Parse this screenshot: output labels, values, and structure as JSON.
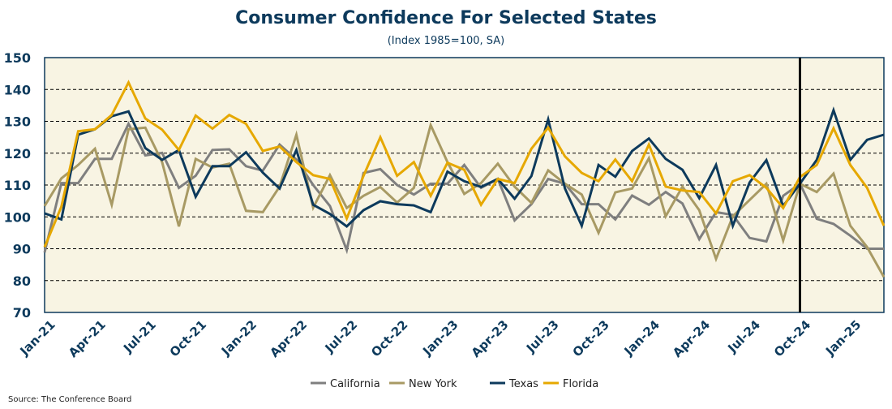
{
  "chart_data": {
    "type": "line",
    "title": "Consumer Confidence For Selected States",
    "subtitle": "(Index 1985=100, SA)",
    "xlabel": "",
    "ylabel": "",
    "ylim": [
      70,
      150
    ],
    "yticks": [
      70,
      80,
      90,
      100,
      110,
      120,
      130,
      140,
      150
    ],
    "grid": true,
    "legend_position": "bottom",
    "x_start": "Jan-21",
    "x_count": 51,
    "x_tick_labels": [
      "Jan-21",
      "Apr-21",
      "Jul-21",
      "Oct-21",
      "Jan-22",
      "Apr-22",
      "Jul-22",
      "Oct-22",
      "Jan-23",
      "Apr-23",
      "Jul-23",
      "Oct-23",
      "Jan-24",
      "Apr-24",
      "Jul-24",
      "Oct-24",
      "Jan-25"
    ],
    "vertical_marker": "Oct-24",
    "series": [
      {
        "name": "California",
        "color": "#7f7f7f",
        "values": [
          88.8,
          110.6,
          110.6,
          118.2,
          118.2,
          129.2,
          119.3,
          120.1,
          109.1,
          112.9,
          121.0,
          121.2,
          115.9,
          114.5,
          122.7,
          118.0,
          110.0,
          103.4,
          89.6,
          113.8,
          115.0,
          110.0,
          107.0,
          110.4,
          110.4,
          116.3,
          109.1,
          111.9,
          98.9,
          104.0,
          111.9,
          110.4,
          104.0,
          104.0,
          99.2,
          106.7,
          103.8,
          107.8,
          104.2,
          93.0,
          101.5,
          100.6,
          93.4,
          92.3,
          106.6,
          110.4,
          99.4,
          97.8,
          94.1,
          90.0,
          90.0
        ]
      },
      {
        "name": "New York",
        "color": "#a89a64",
        "values": [
          103.4,
          112.1,
          116.3,
          121.4,
          103.8,
          127.5,
          128.0,
          117.2,
          97.0,
          118.2,
          115.5,
          116.7,
          101.9,
          101.5,
          109.5,
          125.8,
          102.9,
          113.1,
          102.8,
          106.6,
          109.4,
          104.5,
          109.1,
          128.8,
          117.2,
          107.2,
          110.6,
          116.7,
          109.5,
          104.4,
          114.6,
          110.4,
          107.0,
          95.0,
          107.7,
          108.9,
          118.4,
          100.2,
          109.5,
          102.1,
          86.8,
          100.2,
          105.3,
          110.4,
          92.6,
          110.4,
          107.8,
          113.6,
          97.2,
          90.5,
          81.1
        ]
      },
      {
        "name": "Texas",
        "color": "#0d3a5c",
        "values": [
          101.1,
          99.2,
          125.8,
          127.5,
          131.6,
          133.1,
          121.6,
          117.9,
          121.0,
          106.3,
          115.9,
          115.9,
          120.3,
          113.9,
          108.9,
          121.0,
          103.8,
          100.9,
          97.0,
          102.1,
          104.9,
          104.0,
          103.6,
          101.5,
          114.2,
          111.2,
          109.4,
          111.9,
          105.7,
          112.8,
          130.6,
          108.9,
          97.2,
          116.3,
          112.6,
          120.7,
          124.6,
          118.2,
          114.8,
          105.9,
          116.3,
          97.2,
          110.8,
          117.8,
          103.4,
          110.4,
          117.9,
          133.5,
          117.9,
          124.2,
          125.8
        ]
      },
      {
        "name": "Florida",
        "color": "#e6a800",
        "values": [
          90.5,
          103.2,
          126.9,
          127.5,
          132.0,
          142.2,
          130.9,
          127.4,
          121.0,
          131.8,
          127.7,
          132.0,
          129.2,
          120.7,
          122.1,
          117.2,
          113.1,
          111.9,
          99.5,
          112.9,
          125.0,
          112.9,
          117.2,
          106.6,
          117.0,
          114.8,
          103.8,
          111.9,
          110.6,
          121.4,
          128.0,
          119.0,
          113.8,
          111.2,
          118.0,
          111.2,
          122.7,
          109.5,
          108.3,
          107.8,
          101.1,
          111.2,
          113.1,
          109.1,
          102.8,
          112.5,
          116.3,
          127.8,
          116.3,
          109.1,
          97.2
        ]
      }
    ],
    "source": "Source: The Conference Board"
  },
  "colors": {
    "title": "#0d3a5c",
    "plot_bg": "#f8f4e3",
    "axis": "#0d3a5c"
  }
}
